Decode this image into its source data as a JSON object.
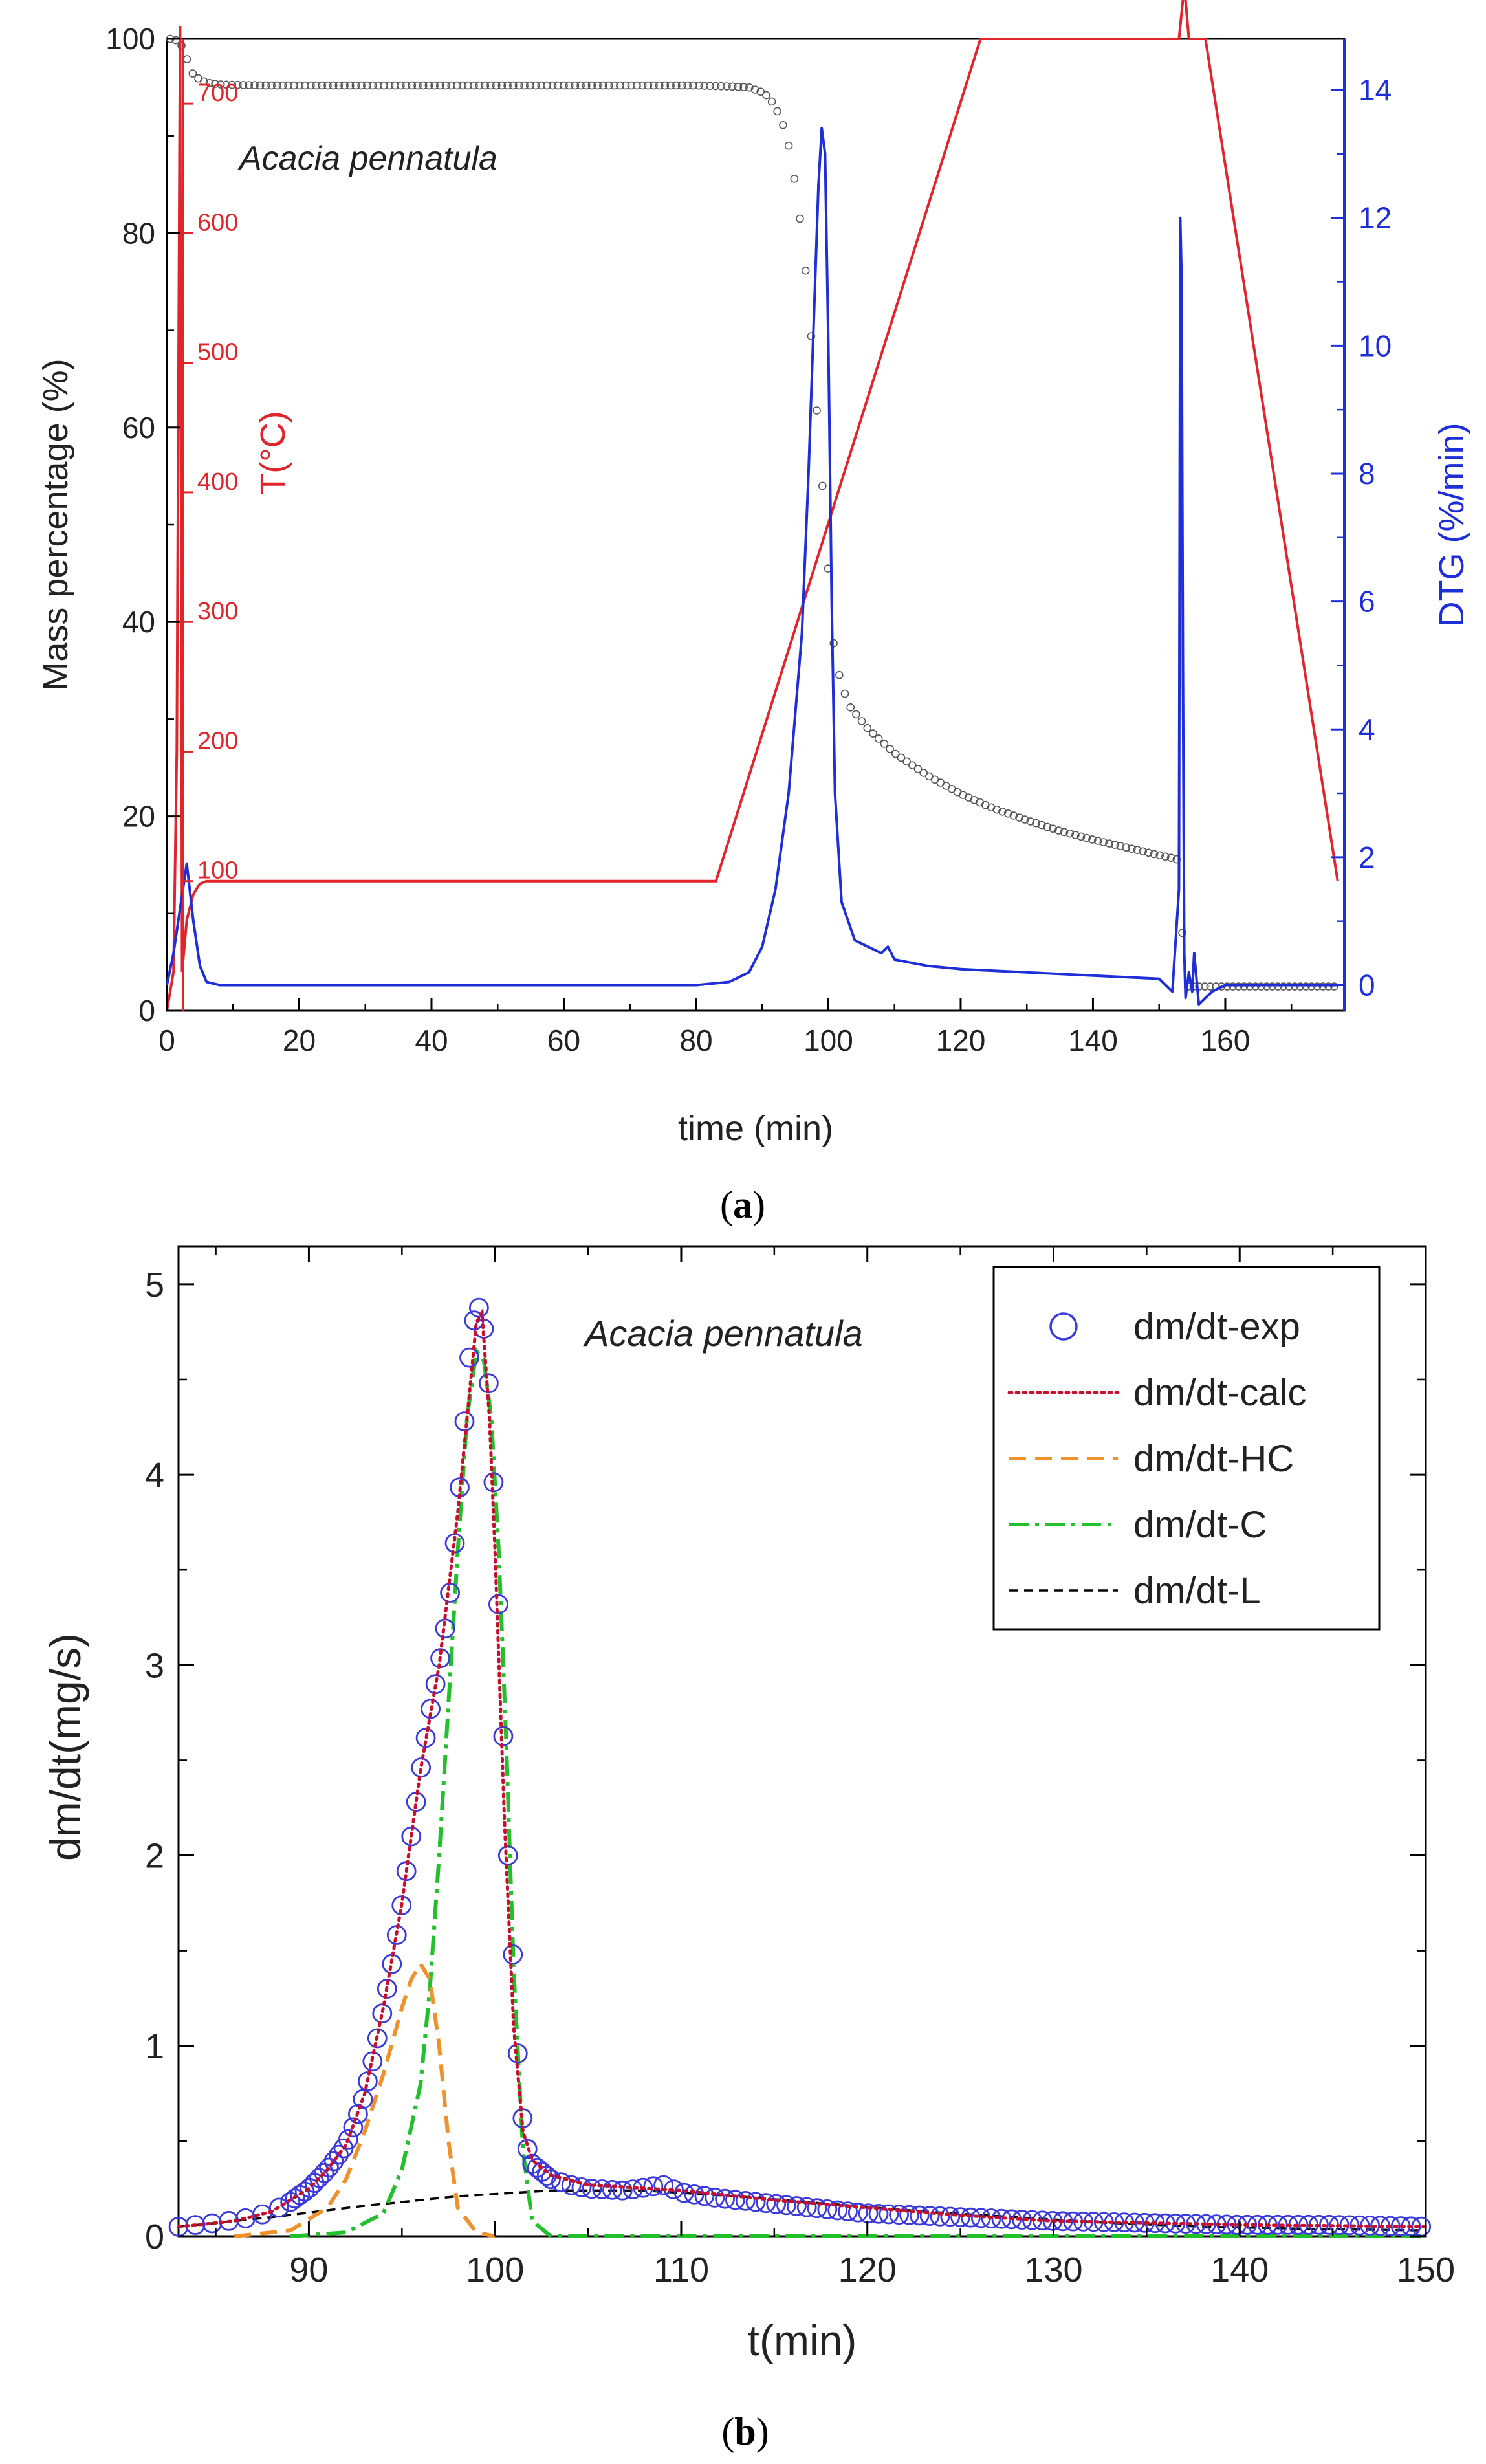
{
  "chart_data": [
    {
      "type": "line",
      "panel": "a",
      "caption": {
        "open": "(",
        "letter": "a",
        "close": ")"
      },
      "annotation": "Acacia pennatula",
      "xlabel": "time (min)",
      "xlim": [
        0,
        178
      ],
      "xticks": [
        0,
        20,
        40,
        60,
        80,
        100,
        120,
        140,
        160
      ],
      "ylabel_left": "Mass percentage (%)",
      "ylim_left": [
        0,
        100
      ],
      "yticks_left": [
        0,
        20,
        40,
        60,
        80,
        100
      ],
      "ylabel_right": "DTG (%/min)",
      "ylim_right": [
        -0.4,
        14.8
      ],
      "yticks_right": [
        0,
        2,
        4,
        6,
        8,
        10,
        12,
        14
      ],
      "ylabel_temp": "T(°C)",
      "temp_range": [
        0,
        750
      ],
      "temp_ticks": [
        100,
        200,
        300,
        400,
        500,
        600,
        700
      ],
      "colors": {
        "mass": "#555555",
        "temperature": "#e0262b",
        "dtg": "#1f2fd8",
        "temp_axis": "#e0262b",
        "dtg_axis": "#1f2fd8"
      },
      "series": [
        {
          "name": "Mass percentage",
          "axis": "left",
          "style": "open-circles",
          "x": [
            0.5,
            1.0,
            1.5,
            2.0,
            2.5,
            3.0,
            3.5,
            4.0,
            5.0,
            6.0,
            8.0,
            15,
            30,
            50,
            70,
            80,
            85,
            88,
            90,
            91,
            92,
            93,
            94,
            95,
            96,
            97,
            98,
            99,
            100,
            101,
            103,
            106,
            110,
            115,
            120,
            125,
            130,
            135,
            140,
            145,
            150,
            152,
            153,
            153.5,
            154,
            158,
            165,
            170,
            177
          ],
          "y": [
            100,
            100,
            99.8,
            99.5,
            99,
            98,
            97,
            96.3,
            95.8,
            95.5,
            95.3,
            95.2,
            95.2,
            95.2,
            95.2,
            95.2,
            95.1,
            95.0,
            94.5,
            94,
            93,
            91.5,
            89,
            85,
            80,
            73,
            64,
            55,
            45,
            36,
            31.5,
            29,
            26.5,
            24.2,
            22.3,
            20.8,
            19.6,
            18.5,
            17.6,
            16.8,
            16.0,
            15.7,
            15.5,
            8,
            2.5,
            2.5,
            2.5,
            2.5,
            2.5
          ]
        },
        {
          "name": "Temperature",
          "axis": "temp",
          "x": [
            0,
            1,
            1.5,
            2,
            2.3,
            3,
            4,
            5,
            6,
            83,
            123,
            153,
            153.6,
            153.8,
            154,
            154.5,
            155,
            157,
            177
          ],
          "y": [
            0,
            30,
            200,
            760,
            30,
            70,
            90,
            98,
            100,
            100,
            750,
            750,
            780,
            820,
            780,
            750,
            750,
            750,
            100
          ]
        },
        {
          "name": "DTG",
          "axis": "right",
          "x": [
            0,
            1,
            2,
            3,
            4,
            5,
            6,
            8,
            20,
            40,
            60,
            80,
            85,
            88,
            90,
            92,
            94,
            96,
            97,
            98,
            98.5,
            99,
            99.5,
            100,
            100.5,
            101,
            102,
            104,
            108,
            109,
            110,
            115,
            120,
            130,
            140,
            150,
            152,
            153,
            153.2,
            153.4,
            153.6,
            153.8,
            154,
            154.5,
            155,
            155.3,
            156,
            158,
            160,
            170,
            177
          ],
          "y": [
            0,
            0.5,
            1.2,
            1.9,
            1.0,
            0.3,
            0.05,
            0,
            0,
            0,
            0,
            0,
            0.05,
            0.2,
            0.6,
            1.5,
            3.0,
            5.5,
            8,
            11,
            12.5,
            13.4,
            13.0,
            10,
            6,
            3,
            1.3,
            0.7,
            0.5,
            0.6,
            0.4,
            0.3,
            0.25,
            0.2,
            0.15,
            0.1,
            -0.1,
            1.5,
            12,
            11,
            5,
            0.5,
            -0.2,
            0.2,
            -0.1,
            0.5,
            -0.3,
            -0.1,
            0,
            0,
            0
          ]
        }
      ],
      "temp_label_values": [
        "100",
        "200",
        "300",
        "400",
        "500",
        "600",
        "700"
      ]
    },
    {
      "type": "line",
      "panel": "b",
      "caption": {
        "open": "(",
        "letter": "b",
        "close": ")"
      },
      "annotation": "Acacia pennatula",
      "xlabel": "t(min)",
      "xlim": [
        83,
        150
      ],
      "xticks": [
        90,
        100,
        110,
        120,
        130,
        140,
        150
      ],
      "ylabel": "dm/dt(mg/s)",
      "ylim": [
        0,
        5.2
      ],
      "yticks": [
        0,
        1,
        2,
        3,
        4,
        5
      ],
      "legend": [
        "dm/dt-exp",
        "dm/dt-calc",
        "dm/dt-HC",
        "dm/dt-C",
        "dm/dt-L"
      ],
      "legend_position": "top-right",
      "colors": {
        "exp": "#3a3adb",
        "calc": "#c8102e",
        "hc": "#f0922b",
        "c": "#22c02a",
        "l": "#000000"
      },
      "series": [
        {
          "name": "dm/dt-exp",
          "style": "open-circles",
          "x": [
            83,
            85,
            87,
            88,
            89,
            90,
            91,
            92,
            92.5,
            93,
            93.5,
            94,
            94.5,
            95,
            95.5,
            96,
            96.5,
            97,
            97.5,
            98,
            98.3,
            98.6,
            99,
            99.3,
            99.6,
            100,
            100.3,
            100.6,
            101,
            101.3,
            101.6,
            102,
            103,
            104,
            105,
            107,
            109,
            110,
            112,
            115,
            118,
            120,
            125,
            130,
            135,
            140,
            145,
            150
          ],
          "y": [
            0.05,
            0.07,
            0.1,
            0.13,
            0.18,
            0.25,
            0.35,
            0.48,
            0.6,
            0.75,
            0.95,
            1.2,
            1.45,
            1.75,
            2.1,
            2.45,
            2.75,
            3.0,
            3.3,
            3.8,
            4.2,
            4.6,
            4.9,
            4.85,
            4.6,
            3.8,
            3.0,
            2.2,
            1.4,
            0.8,
            0.5,
            0.38,
            0.3,
            0.27,
            0.25,
            0.24,
            0.27,
            0.23,
            0.2,
            0.17,
            0.14,
            0.12,
            0.1,
            0.08,
            0.07,
            0.06,
            0.06,
            0.05
          ]
        },
        {
          "name": "dm/dt-calc",
          "x": [
            83,
            86,
            88,
            90,
            91,
            92,
            93,
            94,
            95,
            96,
            97,
            98,
            98.5,
            99,
            99.3,
            99.7,
            100,
            100.5,
            101,
            101.5,
            102,
            103,
            105,
            110,
            115,
            120,
            125,
            130,
            140,
            150
          ],
          "y": [
            0.05,
            0.08,
            0.13,
            0.25,
            0.35,
            0.48,
            0.75,
            1.2,
            1.75,
            2.45,
            3.0,
            3.8,
            4.3,
            4.8,
            4.85,
            4.3,
            3.6,
            2.2,
            1.1,
            0.55,
            0.4,
            0.32,
            0.27,
            0.24,
            0.19,
            0.15,
            0.11,
            0.08,
            0.06,
            0.05
          ]
        },
        {
          "name": "dm/dt-HC",
          "x": [
            86,
            89,
            91,
            92,
            93,
            94,
            95,
            95.5,
            96,
            96.5,
            97,
            97.5,
            98,
            99,
            100
          ],
          "y": [
            0,
            0.03,
            0.15,
            0.3,
            0.55,
            0.85,
            1.2,
            1.35,
            1.43,
            1.35,
            1.0,
            0.5,
            0.15,
            0.02,
            0
          ]
        },
        {
          "name": "dm/dt-C",
          "x": [
            89,
            92,
            94,
            95,
            96,
            96.5,
            97,
            97.5,
            98,
            98.5,
            99,
            99.4,
            99.8,
            100.2,
            100.6,
            101,
            101.5,
            102,
            103,
            105
          ],
          "y": [
            0,
            0.02,
            0.12,
            0.35,
            0.8,
            1.3,
            2.0,
            2.8,
            3.6,
            4.3,
            4.65,
            4.6,
            4.3,
            3.6,
            2.6,
            1.4,
            0.45,
            0.08,
            0,
            0
          ]
        },
        {
          "name": "dm/dt-L",
          "x": [
            83,
            88,
            93,
            98,
            103,
            108,
            113,
            118,
            123,
            128,
            133,
            138,
            143,
            150
          ],
          "y": [
            0.05,
            0.1,
            0.16,
            0.21,
            0.24,
            0.24,
            0.21,
            0.17,
            0.13,
            0.1,
            0.07,
            0.05,
            0.04,
            0.03
          ]
        }
      ]
    }
  ]
}
